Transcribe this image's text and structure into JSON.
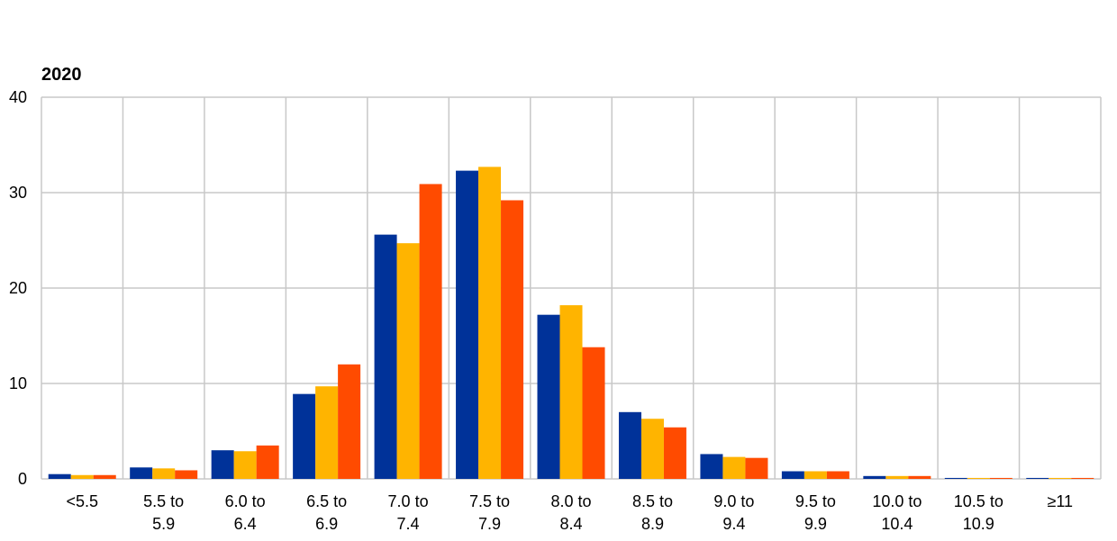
{
  "chart_data": {
    "type": "bar",
    "title": "2020",
    "xlabel": "",
    "ylabel": "",
    "ylim": [
      0,
      40
    ],
    "yticks": [
      0,
      10,
      20,
      30,
      40
    ],
    "grid": true,
    "legend": "none",
    "categories": [
      [
        "<5.5"
      ],
      [
        "5.5 to",
        "5.9"
      ],
      [
        "6.0 to",
        "6.4"
      ],
      [
        "6.5 to",
        "6.9"
      ],
      [
        "7.0 to",
        "7.4"
      ],
      [
        "7.5 to",
        "7.9"
      ],
      [
        "8.0 to",
        "8.4"
      ],
      [
        "8.5 to",
        "8.9"
      ],
      [
        "9.0 to",
        "9.4"
      ],
      [
        "9.5 to",
        "9.9"
      ],
      [
        "10.0 to",
        "10.4"
      ],
      [
        "10.5 to",
        "10.9"
      ],
      [
        "≥11"
      ]
    ],
    "series": [
      {
        "color": "#003299",
        "values": [
          0.5,
          1.2,
          3.0,
          8.9,
          25.6,
          32.3,
          17.2,
          7.0,
          2.6,
          0.8,
          0.3,
          0.1,
          0.1
        ]
      },
      {
        "color": "#ffb400",
        "values": [
          0.4,
          1.1,
          2.9,
          9.7,
          24.7,
          32.7,
          18.2,
          6.3,
          2.3,
          0.8,
          0.3,
          0.1,
          0.1
        ]
      },
      {
        "color": "#ff4b00",
        "values": [
          0.4,
          0.9,
          3.5,
          12.0,
          30.9,
          29.2,
          13.8,
          5.4,
          2.2,
          0.8,
          0.3,
          0.1,
          0.1
        ]
      }
    ]
  }
}
